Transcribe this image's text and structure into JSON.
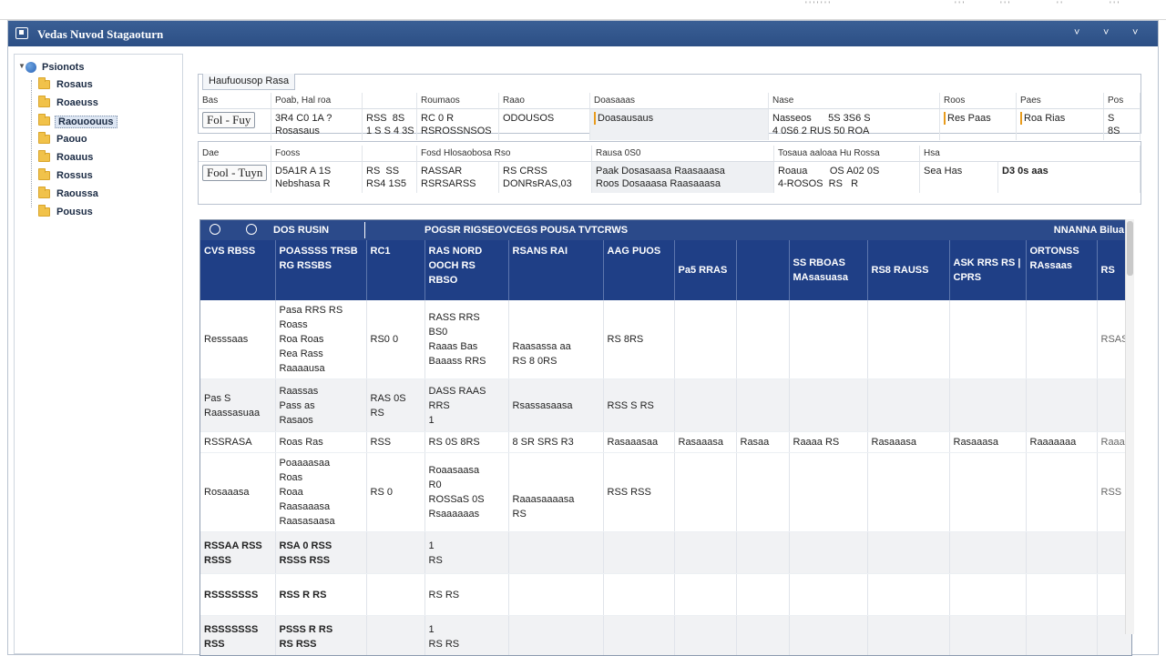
{
  "topstrip": {
    "items": [
      "' ' ' ' ' ' '",
      "' ' '",
      "' ' '",
      "' '",
      "' ' '"
    ]
  },
  "window": {
    "title": "Vedas Nuvod Stagaoturn",
    "controls": [
      "˅",
      "˅",
      "˅"
    ]
  },
  "sidebar": {
    "root_label": "Psionots",
    "items": [
      "Rosaus",
      "Roaeuss",
      "Raouoouus",
      "Paouo",
      "Roauus",
      "Rossus",
      "Raoussa",
      "Pousus"
    ],
    "selected_index": 2
  },
  "panel1": {
    "tab_label": "Haufuousop Rasa",
    "columns": [
      "Bas",
      "Poab, Hal roa",
      "",
      "Roumaos",
      "Raao",
      "Doasaaas",
      "Nase",
      "Roos",
      "Paes",
      "Pos"
    ],
    "values": [
      "Fol - Fuy",
      "3R4 C0 1A ?\nRosasaus",
      "RSS  8S\n1 S S 4 3S",
      "RC 0 R\nRSROSSNSOS",
      "ODOUSOS",
      "Doasausaus",
      "Nasseos      5S 3S6 S\n4 0S6 2 RUS 50 ROA",
      "",
      "Res Paas",
      "Roa Rias",
      "S\n8S"
    ]
  },
  "panel2": {
    "columns": [
      "Dae",
      "Fooss",
      "",
      "Fosd Hlosaobosa Rso",
      "",
      "Rausa 0S0",
      "Tosaua aaloaa Hu Rossa",
      "Hsa"
    ],
    "values": [
      "Fool - Tuyn",
      "D5A1R A 1S\nNebshasa R",
      "RS  SS\nRS4 1S5",
      "RASSAR\nRSRSARSS",
      "RS CRSS\nDONRsRAS,03",
      "Paak Dosasaasa Raasaaasa\nRoos Dosaaasa Raasaaasa",
      "Roaua        OS A02 0S\n4-ROSOS  RS   R",
      "Sea Has",
      "D3 0s aas"
    ]
  },
  "table": {
    "toolbar_left": "DOS RUSIN",
    "toolbar_mid": "POGSR RIGSEOVCEGS POUSA TVTCRWS",
    "toolbar_right": "NNANNA Bilua",
    "headers": [
      "CVS RBSS",
      "POASSSS\nTRSB RG\nRSSBS",
      "RC1",
      "RAS NORD\nOOCH RS\nRBSO",
      "RSANS RAI",
      "AAG PUOS",
      "Pa5 RRAS",
      "",
      "SS RBOAS\nMAsasuasa",
      "RS8 RAUSS",
      "ASK RRS\nRS | CPRS",
      "ORTONSS\nRAssaas",
      "RS"
    ],
    "rows": [
      [
        "Resssaas",
        "Pasa RRS RS\nRoass\nRoa Roas\nRea Rass\nRaaaausa",
        "RS0 0",
        "RASS RRS\nBS0\nRaaas Bas\nBaaass RRS",
        "\n\nRaasassa aa\nRS 8 0RS",
        "RS 8RS",
        "",
        "",
        "",
        "",
        "",
        "",
        "RSAS"
      ],
      [
        "Pas S\nRaassasuaa",
        "Raassas\nPass as\nRasaos",
        "RAS 0S\nRS",
        "DASS RAAS\nRRS\n1",
        "Rsassasaasa",
        "RSS S RS",
        "",
        "",
        "",
        "",
        "",
        "",
        ""
      ],
      [
        "RSSRASA",
        "Roas Ras",
        "RSS",
        "RS 0S 8RS",
        "8 SR SRS R3",
        "Rasaaasaa",
        "Rasaaasa",
        "Rasaa",
        "Raaaa RS",
        "Rasaaasa",
        "Rasaaasa",
        "Raaaaaaa",
        "Raaa"
      ],
      [
        "Rosaaasa",
        "Poaaaasaa\nRoas\nRoaa\nRaasaaasa\nRaasasaasa",
        "RS 0",
        "Roaasaasa\nR0\nROSSaS 0S\nRsaaaaaas",
        "\n\nRaaasaaaasa\nRS",
        "RSS RSS",
        "",
        "",
        "",
        "",
        "",
        "",
        "RSS"
      ],
      [
        "RSSAA RSS\nRSSS",
        "RSA 0 RSS\nRSSS RSS",
        "",
        "1\nRS",
        "",
        "",
        "",
        "",
        "",
        "",
        "",
        "",
        ""
      ],
      [
        "RSSSSSSS",
        "RSS R RS",
        "",
        "RS RS",
        "",
        "",
        "",
        "",
        "",
        "",
        "",
        "",
        ""
      ],
      [
        "RSSSSSSS\nRSS",
        "PSSS R RS\nRS RSS",
        "",
        "1\nRS RS",
        "",
        "",
        "",
        "",
        "",
        "",
        "",
        "",
        ""
      ]
    ]
  }
}
